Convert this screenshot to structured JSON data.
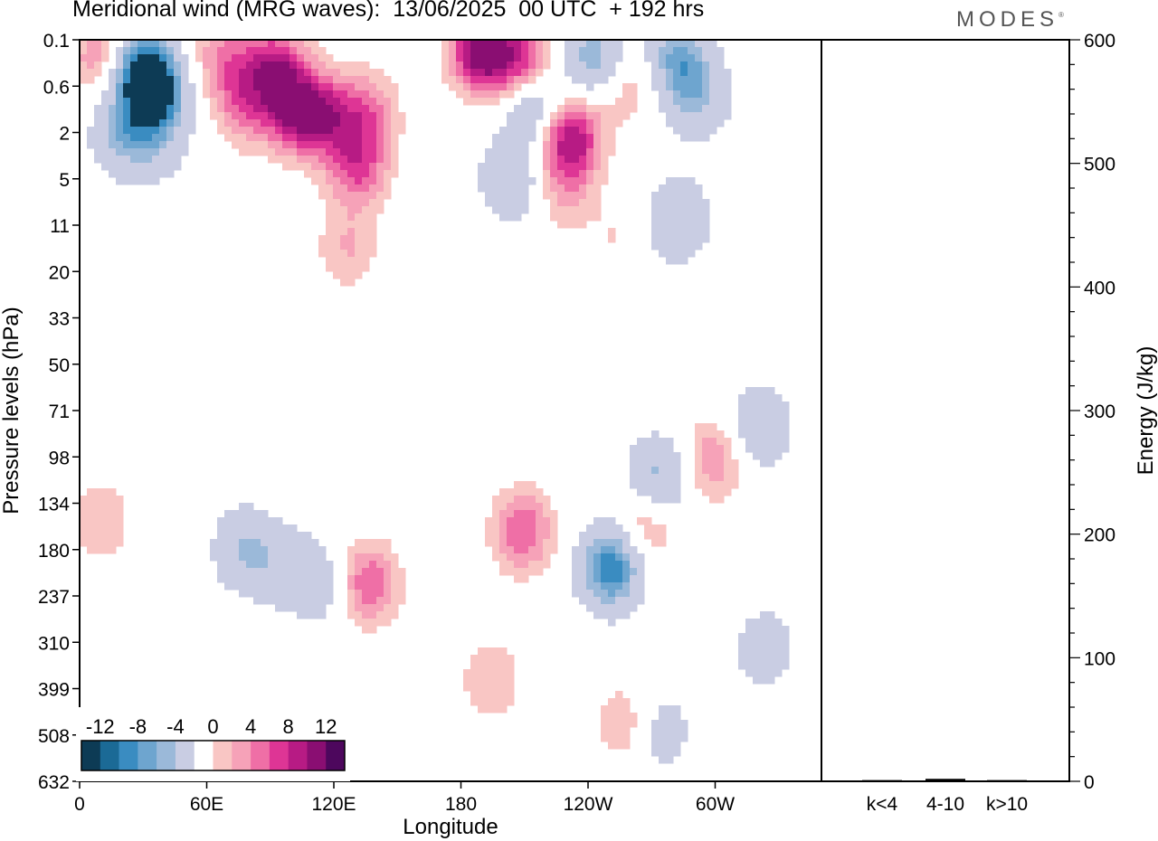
{
  "header": {
    "title": "Meridional wind (MRG waves):  13/06/2025  00 UTC  + 192 hrs",
    "logo": "MODES",
    "logo_mark": "®"
  },
  "chart_data": [
    {
      "type": "heatmap",
      "title": "Meridional wind (MRG waves):  13/06/2025  00 UTC  + 192 hrs",
      "xlabel": "Longitude",
      "ylabel": "Pressure levels (hPa)",
      "x_ticks": [
        "0",
        "60E",
        "120E",
        "180",
        "120W",
        "60W"
      ],
      "y_ticks": [
        "0.1",
        "0.6",
        "2",
        "5",
        "11",
        "20",
        "33",
        "50",
        "71",
        "98",
        "134",
        "180",
        "237",
        "310",
        "399",
        "508",
        "632"
      ],
      "colorbar": {
        "tick_labels": [
          "-12",
          "-8",
          "-4",
          "0",
          "4",
          "8",
          "12"
        ],
        "levels": [
          -14,
          -12,
          -10,
          -8,
          -6,
          -4,
          -2,
          2,
          4,
          6,
          8,
          10,
          12,
          14
        ],
        "colors": [
          "#0d3b55",
          "#1b6a96",
          "#3a8cc1",
          "#6ea5cf",
          "#9bb9d9",
          "#c9cde3",
          "#ffffff",
          "#f9c6c4",
          "#f6a2b8",
          "#ef6fa6",
          "#de3595",
          "#b71b84",
          "#8a0e72",
          "#4d075d"
        ]
      },
      "features": [
        {
          "lon": 30,
          "p": 0.35,
          "v": -14
        },
        {
          "lon": 10,
          "p": 0.2,
          "v": 6
        },
        {
          "lon": 40,
          "p": 0.8,
          "v": -8
        },
        {
          "lon": 70,
          "p": 0.2,
          "v": 6
        },
        {
          "lon": 95,
          "p": 0.3,
          "v": 10
        },
        {
          "lon": 80,
          "p": 1.0,
          "v": 6
        },
        {
          "lon": 105,
          "p": 1.2,
          "v": 10
        },
        {
          "lon": 120,
          "p": 1.3,
          "v": 8
        },
        {
          "lon": 20,
          "p": 2.0,
          "v": -6
        },
        {
          "lon": 35,
          "p": 2.5,
          "v": -4
        },
        {
          "lon": 135,
          "p": 4.0,
          "v": 8
        },
        {
          "lon": 140,
          "p": 1.2,
          "v": 6
        },
        {
          "lon": 195,
          "p": 0.15,
          "v": 14
        },
        {
          "lon": 215,
          "p": 0.25,
          "v": 10
        },
        {
          "lon": 250,
          "p": 0.2,
          "v": -8
        },
        {
          "lon": 290,
          "p": 0.2,
          "v": -8
        },
        {
          "lon": 220,
          "p": 0.9,
          "v": -8
        },
        {
          "lon": 238,
          "p": 2.2,
          "v": 12
        },
        {
          "lon": 210,
          "p": 5.0,
          "v": -6
        },
        {
          "lon": 235,
          "p": 6.0,
          "v": 4
        },
        {
          "lon": 265,
          "p": 0.6,
          "v": 4
        },
        {
          "lon": 300,
          "p": 0.8,
          "v": -6
        },
        {
          "lon": 290,
          "p": 10.0,
          "v": -6
        },
        {
          "lon": 130,
          "p": 15.0,
          "v": 4
        },
        {
          "lon": 260,
          "p": 13.0,
          "v": 2
        },
        {
          "lon": 10,
          "p": 150.0,
          "v": 4
        },
        {
          "lon": 80,
          "p": 180.0,
          "v": -6
        },
        {
          "lon": 100,
          "p": 200.0,
          "v": -4
        },
        {
          "lon": 118,
          "p": 220.0,
          "v": -4
        },
        {
          "lon": 140,
          "p": 220.0,
          "v": 8
        },
        {
          "lon": 70,
          "p": 350.0,
          "v": 2
        },
        {
          "lon": 215,
          "p": 160.0,
          "v": 8
        },
        {
          "lon": 258,
          "p": 200.0,
          "v": -12
        },
        {
          "lon": 275,
          "p": 150.0,
          "v": 6
        },
        {
          "lon": 280,
          "p": 115.0,
          "v": -8
        },
        {
          "lon": 308,
          "p": 100.0,
          "v": 6
        },
        {
          "lon": 330,
          "p": 80.0,
          "v": -6
        },
        {
          "lon": 200,
          "p": 380.0,
          "v": 4
        },
        {
          "lon": 265,
          "p": 480.0,
          "v": 4
        },
        {
          "lon": 282,
          "p": 500.0,
          "v": -4
        },
        {
          "lon": 332,
          "p": 320.0,
          "v": -4
        }
      ]
    },
    {
      "type": "bar",
      "categories": [
        "k<4",
        "4-10",
        "k>10"
      ],
      "values": [
        1,
        2,
        1
      ],
      "ylabel": "Energy (J/kg)",
      "ylim": [
        0,
        600
      ],
      "y_ticks": [
        "0",
        "100",
        "200",
        "300",
        "400",
        "500",
        "600"
      ],
      "xlabel": ""
    }
  ]
}
